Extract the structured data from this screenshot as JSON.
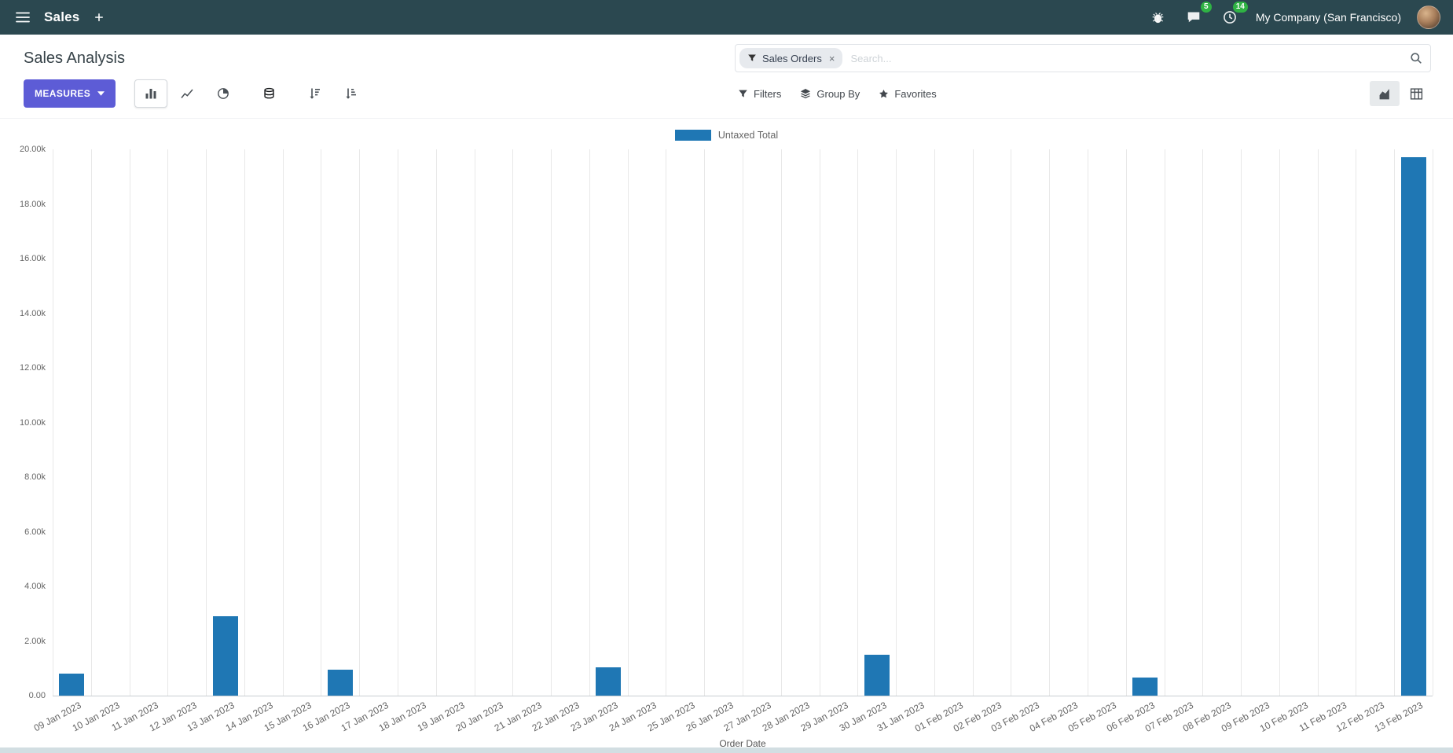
{
  "navbar": {
    "app_name": "Sales",
    "company": "My Company (San Francisco)",
    "badges": {
      "messages": "5",
      "activities": "14"
    }
  },
  "control_panel": {
    "title": "Sales Analysis",
    "measures_button": "MEASURES",
    "search": {
      "facet_label": "Sales Orders",
      "facet_remove": "×",
      "placeholder": "Search..."
    },
    "filter_buttons": {
      "filters": "Filters",
      "group_by": "Group By",
      "favorites": "Favorites"
    }
  },
  "chart_data": {
    "type": "bar",
    "series_name": "Untaxed Total",
    "legend_position": "top",
    "xlabel": "Order Date",
    "ylabel": "",
    "ylim": [
      0,
      20000
    ],
    "ytick_step": 2000,
    "ytick_labels_top_to_bottom": [
      "20.00k",
      "18.00k",
      "16.00k",
      "14.00k",
      "12.00k",
      "10.00k",
      "8.00k",
      "6.00k",
      "4.00k",
      "2.00k",
      "0.00"
    ],
    "bar_color": "#1f77b4",
    "grid": "vertical",
    "categories": [
      "09 Jan 2023",
      "10 Jan 2023",
      "11 Jan 2023",
      "12 Jan 2023",
      "13 Jan 2023",
      "14 Jan 2023",
      "15 Jan 2023",
      "16 Jan 2023",
      "17 Jan 2023",
      "18 Jan 2023",
      "19 Jan 2023",
      "20 Jan 2023",
      "21 Jan 2023",
      "22 Jan 2023",
      "23 Jan 2023",
      "24 Jan 2023",
      "25 Jan 2023",
      "26 Jan 2023",
      "27 Jan 2023",
      "28 Jan 2023",
      "29 Jan 2023",
      "30 Jan 2023",
      "31 Jan 2023",
      "01 Feb 2023",
      "02 Feb 2023",
      "03 Feb 2023",
      "04 Feb 2023",
      "05 Feb 2023",
      "06 Feb 2023",
      "07 Feb 2023",
      "08 Feb 2023",
      "09 Feb 2023",
      "10 Feb 2023",
      "11 Feb 2023",
      "12 Feb 2023",
      "13 Feb 2023"
    ],
    "values": [
      800,
      0,
      0,
      0,
      2900,
      0,
      0,
      950,
      0,
      0,
      0,
      0,
      0,
      0,
      1050,
      0,
      0,
      0,
      0,
      0,
      0,
      1500,
      0,
      0,
      0,
      0,
      0,
      0,
      650,
      0,
      0,
      0,
      0,
      0,
      0,
      19700
    ]
  }
}
